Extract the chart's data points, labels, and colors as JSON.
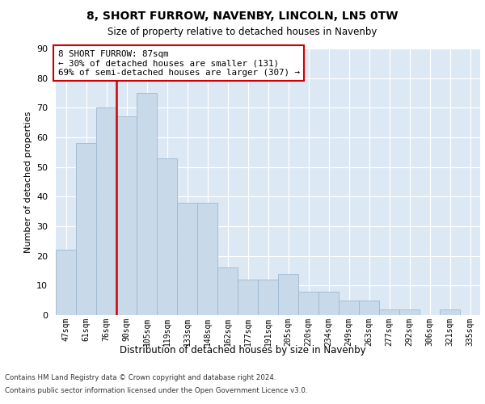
{
  "title": "8, SHORT FURROW, NAVENBY, LINCOLN, LN5 0TW",
  "subtitle": "Size of property relative to detached houses in Navenby",
  "xlabel": "Distribution of detached houses by size in Navenby",
  "ylabel": "Number of detached properties",
  "bar_labels": [
    "47sqm",
    "61sqm",
    "76sqm",
    "90sqm",
    "105sqm",
    "119sqm",
    "133sqm",
    "148sqm",
    "162sqm",
    "177sqm",
    "191sqm",
    "205sqm",
    "220sqm",
    "234sqm",
    "249sqm",
    "263sqm",
    "277sqm",
    "292sqm",
    "306sqm",
    "321sqm",
    "335sqm"
  ],
  "bar_values": [
    22,
    58,
    70,
    67,
    75,
    53,
    38,
    38,
    16,
    12,
    12,
    14,
    8,
    8,
    5,
    5,
    2,
    2,
    0,
    2,
    0
  ],
  "bar_color": "#c8d9ea",
  "bar_edge_color": "#a0b8d0",
  "vline_color": "#cc0000",
  "vline_pos": 2.5,
  "annotation_text": "8 SHORT FURROW: 87sqm\n← 30% of detached houses are smaller (131)\n69% of semi-detached houses are larger (307) →",
  "annotation_box_color": "#ffffff",
  "annotation_box_edge": "#cc0000",
  "ylim": [
    0,
    90
  ],
  "yticks": [
    0,
    10,
    20,
    30,
    40,
    50,
    60,
    70,
    80,
    90
  ],
  "plot_background": "#dce8f4",
  "footer_line1": "Contains HM Land Registry data © Crown copyright and database right 2024.",
  "footer_line2": "Contains public sector information licensed under the Open Government Licence v3.0."
}
